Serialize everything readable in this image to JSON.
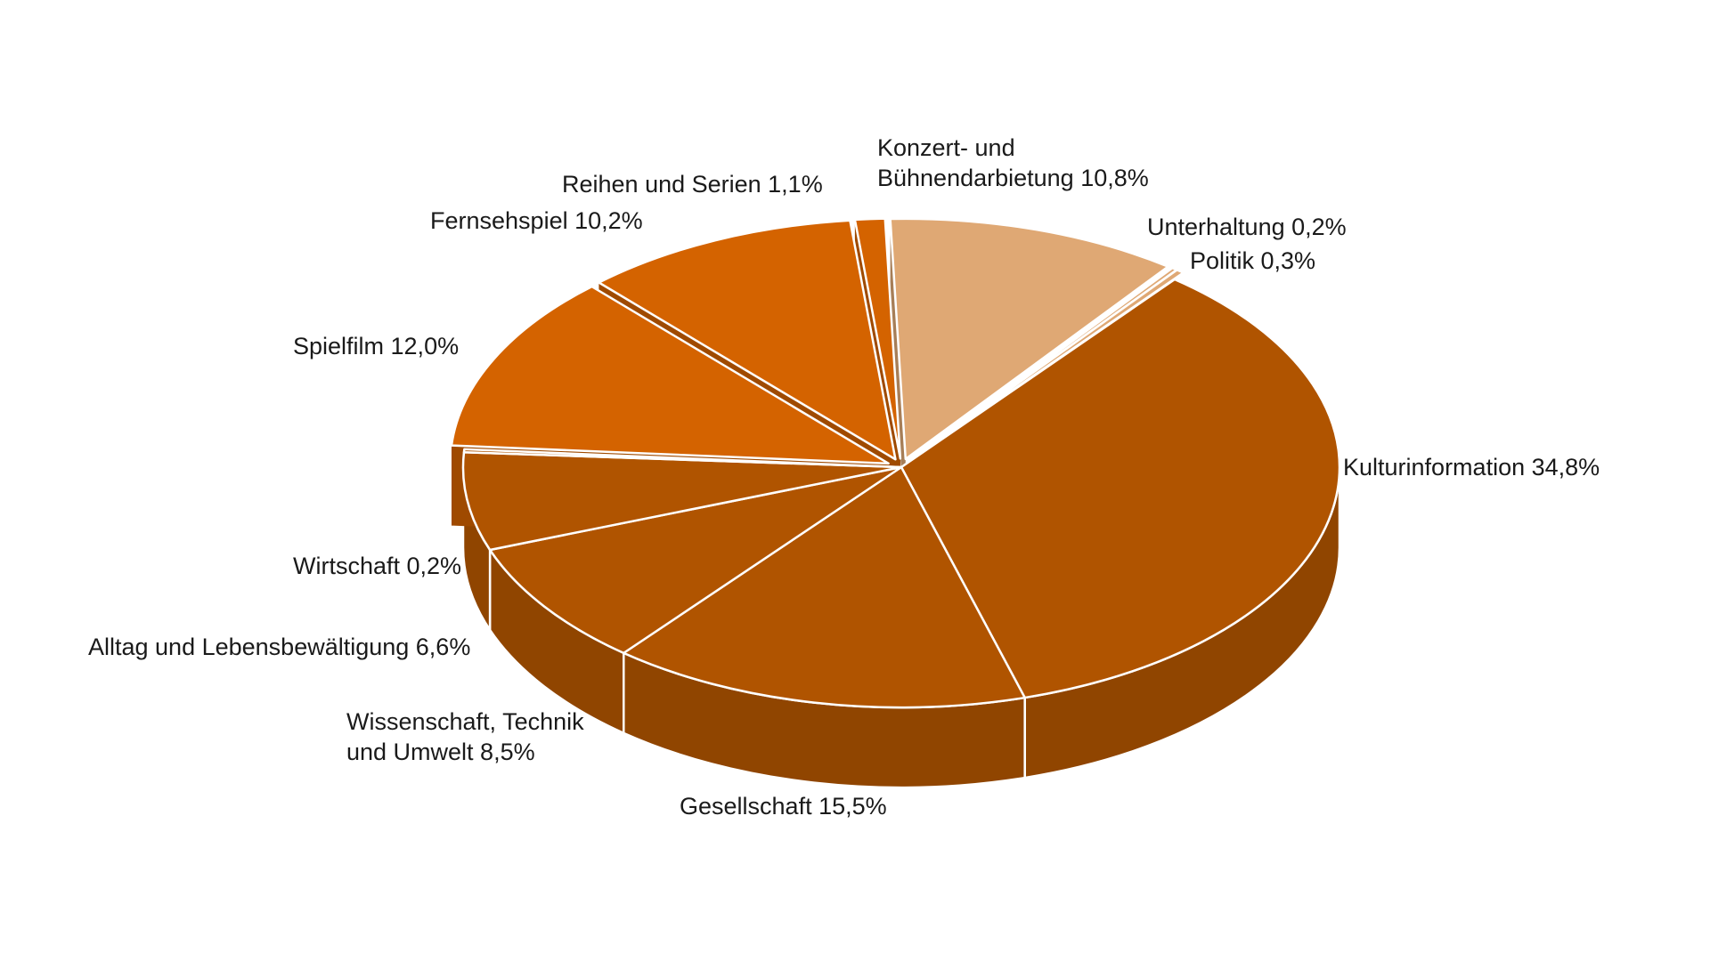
{
  "chart_data": {
    "type": "pie",
    "style": "3d-exploded",
    "slices": [
      {
        "label_lines": [
          "Konzert- und",
          "Bühnendarbietung  10,8%"
        ],
        "value": 10.8,
        "color": "#dfa874",
        "exploded": true
      },
      {
        "label_lines": [
          "Unterhaltung  0,2%"
        ],
        "value": 0.2,
        "color": "#dfa874",
        "exploded": true
      },
      {
        "label_lines": [
          "Politik  0,3%"
        ],
        "value": 0.3,
        "color": "#dfa874",
        "exploded": true
      },
      {
        "label_lines": [
          "Kulturinformation  34,8%"
        ],
        "value": 34.8,
        "color": "#b05400",
        "exploded": false
      },
      {
        "label_lines": [
          "Gesellschaft  15,5%"
        ],
        "value": 15.5,
        "color": "#b05400",
        "exploded": false
      },
      {
        "label_lines": [
          "Wissenschaft, Technik",
          "und Umwelt   8,5%"
        ],
        "value": 8.5,
        "color": "#b05400",
        "exploded": false
      },
      {
        "label_lines": [
          "Alltag und Lebensbewältigung  6,6%"
        ],
        "value": 6.6,
        "color": "#b05400",
        "exploded": false
      },
      {
        "label_lines": [
          "Wirtschaft  0,2%"
        ],
        "value": 0.2,
        "color": "#b05400",
        "exploded": false
      },
      {
        "label_lines": [
          "Spielfilm  12,0%"
        ],
        "value": 12.0,
        "color": "#d46300",
        "exploded": true
      },
      {
        "label_lines": [
          "Fernsehspiel  10,2%"
        ],
        "value": 10.2,
        "color": "#d46300",
        "exploded": true
      },
      {
        "label_lines": [
          "Reihen und Serien  1,1%"
        ],
        "value": 1.1,
        "color": "#d46300",
        "exploded": true
      }
    ],
    "legend": "none"
  }
}
